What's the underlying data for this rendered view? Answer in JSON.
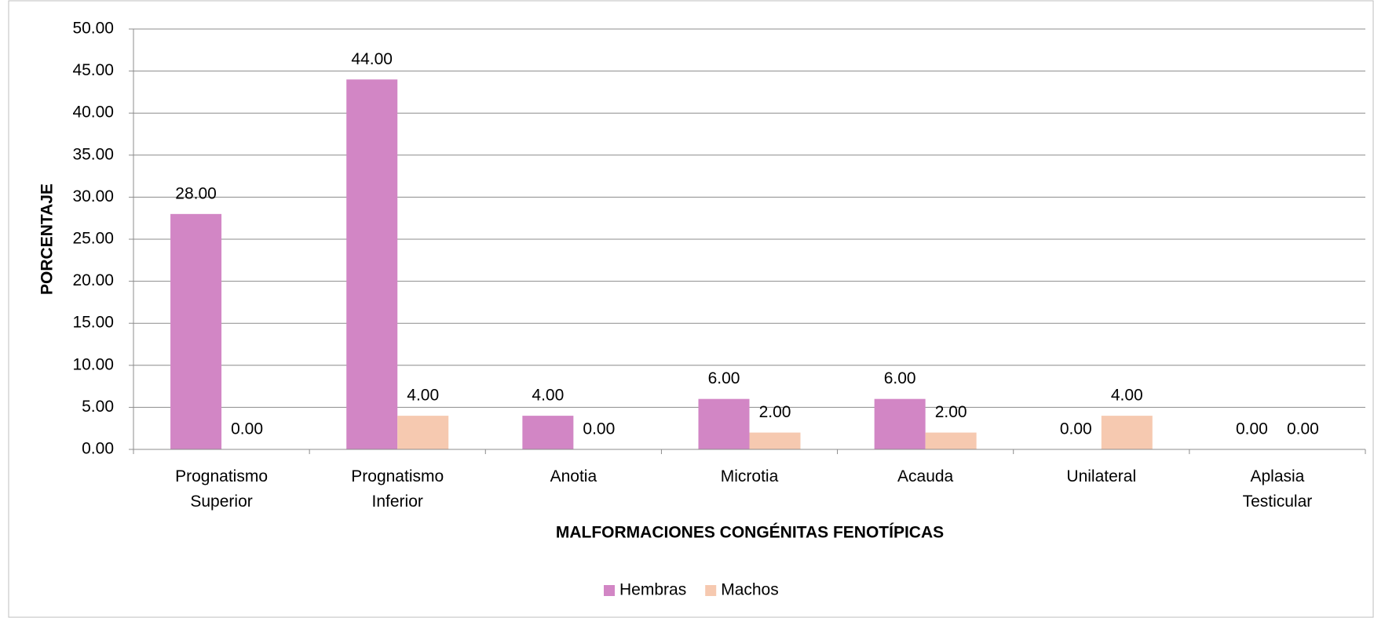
{
  "chart_data": {
    "type": "bar",
    "x_label": "MALFORMACIONES CONGÉNITAS FENOTÍPICAS",
    "y_label": "PORCENTAJE",
    "categories": [
      "Prognatismo Superior",
      "Prognatismo Inferior",
      "Anotia",
      "Microtia",
      "Acauda",
      "Unilateral",
      "Aplasia Testicular"
    ],
    "series": [
      {
        "name": "Hembras",
        "color": "#d286c5",
        "values": [
          28,
          44,
          4,
          6,
          6,
          0,
          0
        ],
        "value_labels": [
          "28.00",
          "44.00",
          "4.00",
          "6.00",
          "6.00",
          "0.00",
          "0.00"
        ]
      },
      {
        "name": "Machos",
        "color": "#f6c9b0",
        "values": [
          0,
          4,
          0,
          2,
          2,
          4,
          0
        ],
        "value_labels": [
          "0.00",
          "4.00",
          "0.00",
          "2.00",
          "2.00",
          "4.00",
          "0.00"
        ]
      }
    ],
    "ylim": [
      0,
      50
    ],
    "yticks": [
      {
        "value": 0,
        "label": "0.00"
      },
      {
        "value": 5,
        "label": "5.00"
      },
      {
        "value": 10,
        "label": "10.00"
      },
      {
        "value": 15,
        "label": "15.00"
      },
      {
        "value": 20,
        "label": "20.00"
      },
      {
        "value": 25,
        "label": "25.00"
      },
      {
        "value": 30,
        "label": "30.00"
      },
      {
        "value": 35,
        "label": "35.00"
      },
      {
        "value": 40,
        "label": "40.00"
      },
      {
        "value": 45,
        "label": "45.00"
      },
      {
        "value": 50,
        "label": "50.00"
      }
    ],
    "grid": true,
    "legend": "bottom"
  }
}
